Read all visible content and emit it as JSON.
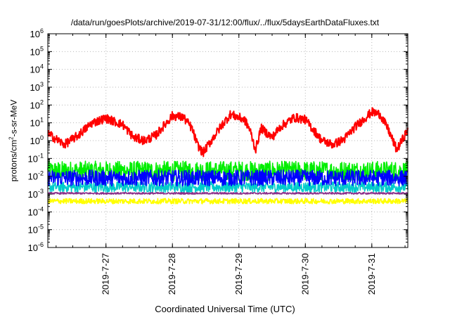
{
  "chart_data": {
    "type": "line",
    "title": "/data/run/goesPlots/archive/2019-07-31/12:00/flux/../flux/5daysEarthDataFluxes.txt",
    "xlabel": "Coordinated Universal Time (UTC)",
    "ylabel_prefix": "protons/cm",
    "ylabel_sup": "2",
    "ylabel_suffix": "-s-sr-MeV",
    "yscale": "log",
    "ylim_exponents": [
      -6,
      6
    ],
    "y_tick_base": "10",
    "y_tick_exponents": [
      "-6",
      "-5",
      "-4",
      "-3",
      "-2",
      "-1",
      "0",
      "1",
      "2",
      "3",
      "4",
      "5",
      "6"
    ],
    "x_range_days": [
      "2019-07-26 03:00",
      "2019-07-31 13:00"
    ],
    "x_tick_labels": [
      "2019-7-27",
      "2019-7-28",
      "2019-7-29",
      "2019-7-30",
      "2019-7-31"
    ],
    "grid": true,
    "series": [
      {
        "color": "#ff0000",
        "noise": 0.25,
        "x": [
          "2019-07-26 03:00",
          "2019-07-26 06:00",
          "2019-07-26 09:00",
          "2019-07-26 14:00",
          "2019-07-26 19:00",
          "2019-07-27 00:00",
          "2019-07-27 06:00",
          "2019-07-27 10:00",
          "2019-07-27 14:00",
          "2019-07-27 18:00",
          "2019-07-28 00:00",
          "2019-07-28 04:00",
          "2019-07-28 07:00",
          "2019-07-28 09:00",
          "2019-07-28 11:00",
          "2019-07-28 14:00",
          "2019-07-28 18:00",
          "2019-07-28 21:00",
          "2019-07-29 02:00",
          "2019-07-29 04:00",
          "2019-07-29 06:00",
          "2019-07-29 08:00",
          "2019-07-29 12:00",
          "2019-07-29 15:00",
          "2019-07-29 20:00",
          "2019-07-30 00:00",
          "2019-07-30 06:00",
          "2019-07-30 10:00",
          "2019-07-30 14:00",
          "2019-07-30 18:00",
          "2019-07-31 00:00",
          "2019-07-31 03:00",
          "2019-07-31 06:00",
          "2019-07-31 09:00",
          "2019-07-31 13:00"
        ],
        "y": [
          2.5,
          1.2,
          0.6,
          2.0,
          10,
          18,
          8,
          1.5,
          1.0,
          2.0,
          25,
          20,
          5,
          0.6,
          0.2,
          1.0,
          8,
          30,
          15,
          4,
          0.3,
          5,
          1.5,
          6,
          20,
          15,
          1.0,
          0.6,
          1.2,
          6,
          40,
          30,
          4,
          0.3,
          4
        ]
      },
      {
        "color": "#00ee00",
        "noise": 0.55,
        "x": [
          "2019-07-26 03:00",
          "2019-07-31 13:00"
        ],
        "y": [
          0.02,
          0.02
        ]
      },
      {
        "color": "#00cccc",
        "noise": 0.3,
        "x": [
          "2019-07-26 03:00",
          "2019-07-31 13:00"
        ],
        "y": [
          0.0025,
          0.0025
        ]
      },
      {
        "color": "#0000ff",
        "noise": 0.45,
        "x": [
          "2019-07-26 03:00",
          "2019-07-31 13:00"
        ],
        "y": [
          0.008,
          0.008
        ]
      },
      {
        "color": "#ffff00",
        "noise": 0.15,
        "x": [
          "2019-07-26 03:00",
          "2019-07-31 13:00"
        ],
        "y": [
          0.0004,
          0.0004
        ]
      },
      {
        "color": "#8b2f8b",
        "noise": 0.05,
        "x": [
          "2019-07-26 03:00",
          "2019-07-31 13:00"
        ],
        "y": [
          0.0011,
          0.0011
        ]
      }
    ]
  }
}
